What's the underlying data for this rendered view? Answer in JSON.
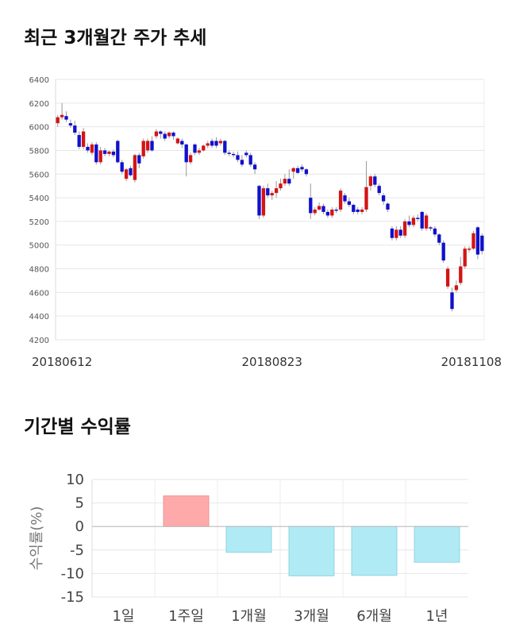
{
  "titles": {
    "stock": "최근 3개월간 주가 추세",
    "returns": "기간별 수익률"
  },
  "colors": {
    "up": "#d41414",
    "down": "#1010cc",
    "wick": "#999999",
    "positive_bar": "#ffaaaa",
    "negative_bar": "#b0ebf5"
  },
  "chart_data": [
    {
      "type": "candlestick",
      "title": "최근 3개월간 주가 추세",
      "ylim": [
        4200,
        6400
      ],
      "yticks": [
        4200,
        4400,
        4600,
        4800,
        5000,
        5200,
        5400,
        5600,
        5800,
        6000,
        6200,
        6400
      ],
      "xtick_labels": [
        "20180612",
        "20180823",
        "20181108"
      ],
      "xtick_index": [
        0,
        50,
        101
      ],
      "grid": true,
      "candles": [
        [
          6030,
          6080,
          6000,
          6100
        ],
        [
          6080,
          6100,
          6060,
          6200
        ],
        [
          6090,
          6060,
          6040,
          6130
        ],
        [
          6030,
          6010,
          5990,
          6060
        ],
        [
          6010,
          5950,
          5930,
          6050
        ],
        [
          5930,
          5830,
          5810,
          5960
        ],
        [
          5830,
          5960,
          5810,
          5990
        ],
        [
          5830,
          5800,
          5780,
          5860
        ],
        [
          5780,
          5850,
          5760,
          5870
        ],
        [
          5850,
          5700,
          5680,
          5870
        ],
        [
          5700,
          5800,
          5680,
          5830
        ],
        [
          5800,
          5770,
          5750,
          5820
        ],
        [
          5770,
          5790,
          5750,
          5800
        ],
        [
          5790,
          5760,
          5740,
          5810
        ],
        [
          5880,
          5700,
          5690,
          5890
        ],
        [
          5700,
          5620,
          5600,
          5720
        ],
        [
          5560,
          5640,
          5540,
          5650
        ],
        [
          5650,
          5590,
          5580,
          5670
        ],
        [
          5550,
          5760,
          5530,
          5770
        ],
        [
          5760,
          5690,
          5650,
          5780
        ],
        [
          5750,
          5880,
          5730,
          5900
        ],
        [
          5800,
          5880,
          5780,
          5900
        ],
        [
          5880,
          5800,
          5790,
          5920
        ],
        [
          5920,
          5960,
          5900,
          5980
        ],
        [
          5960,
          5940,
          5900,
          5970
        ],
        [
          5940,
          5900,
          5880,
          5960
        ],
        [
          5920,
          5950,
          5900,
          5960
        ],
        [
          5950,
          5920,
          5890,
          5960
        ],
        [
          5860,
          5900,
          5850,
          5910
        ],
        [
          5880,
          5850,
          5820,
          5900
        ],
        [
          5850,
          5700,
          5580,
          5860
        ],
        [
          5700,
          5760,
          5680,
          5780
        ],
        [
          5850,
          5780,
          5760,
          5860
        ],
        [
          5780,
          5800,
          5760,
          5820
        ],
        [
          5800,
          5840,
          5790,
          5850
        ],
        [
          5840,
          5860,
          5820,
          5880
        ],
        [
          5880,
          5840,
          5820,
          5900
        ],
        [
          5880,
          5840,
          5820,
          5910
        ],
        [
          5860,
          5880,
          5840,
          5900
        ],
        [
          5880,
          5780,
          5760,
          5890
        ],
        [
          5780,
          5770,
          5750,
          5800
        ],
        [
          5770,
          5760,
          5740,
          5790
        ],
        [
          5760,
          5720,
          5700,
          5790
        ],
        [
          5720,
          5680,
          5660,
          5760
        ],
        [
          5780,
          5760,
          5740,
          5800
        ],
        [
          5760,
          5680,
          5660,
          5780
        ],
        [
          5680,
          5640,
          5600,
          5700
        ],
        [
          5500,
          5250,
          5220,
          5510
        ],
        [
          5250,
          5480,
          5230,
          5500
        ],
        [
          5480,
          5420,
          5400,
          5520
        ],
        [
          5420,
          5440,
          5380,
          5460
        ],
        [
          5440,
          5480,
          5400,
          5540
        ],
        [
          5480,
          5520,
          5460,
          5560
        ],
        [
          5520,
          5560,
          5500,
          5600
        ],
        [
          5560,
          5520,
          5500,
          5640
        ],
        [
          5620,
          5650,
          5560,
          5660
        ],
        [
          5650,
          5610,
          5600,
          5670
        ],
        [
          5660,
          5640,
          5620,
          5680
        ],
        [
          5640,
          5600,
          5580,
          5650
        ],
        [
          5400,
          5270,
          5220,
          5520
        ],
        [
          5270,
          5300,
          5250,
          5320
        ],
        [
          5300,
          5330,
          5290,
          5360
        ],
        [
          5330,
          5280,
          5260,
          5350
        ],
        [
          5280,
          5250,
          5230,
          5300
        ],
        [
          5250,
          5300,
          5230,
          5320
        ],
        [
          5300,
          5290,
          5270,
          5320
        ],
        [
          5300,
          5460,
          5280,
          5480
        ],
        [
          5420,
          5370,
          5350,
          5440
        ],
        [
          5370,
          5340,
          5320,
          5400
        ],
        [
          5340,
          5280,
          5260,
          5350
        ],
        [
          5300,
          5280,
          5260,
          5320
        ],
        [
          5280,
          5300,
          5260,
          5320
        ],
        [
          5300,
          5490,
          5280,
          5710
        ],
        [
          5500,
          5580,
          5460,
          5590
        ],
        [
          5580,
          5510,
          5490,
          5600
        ],
        [
          5500,
          5440,
          5420,
          5520
        ],
        [
          5420,
          5370,
          5340,
          5440
        ],
        [
          5350,
          5300,
          5280,
          5360
        ],
        [
          5140,
          5060,
          5040,
          5160
        ],
        [
          5060,
          5130,
          5040,
          5160
        ],
        [
          5130,
          5080,
          5060,
          5160
        ],
        [
          5080,
          5200,
          5060,
          5220
        ],
        [
          5200,
          5170,
          5150,
          5250
        ],
        [
          5170,
          5230,
          5150,
          5250
        ],
        [
          5230,
          5220,
          5200,
          5260
        ],
        [
          5280,
          5140,
          5120,
          5290
        ],
        [
          5140,
          5250,
          5120,
          5270
        ],
        [
          5150,
          5140,
          5120,
          5160
        ],
        [
          5140,
          5090,
          5070,
          5160
        ],
        [
          5090,
          5020,
          5000,
          5100
        ],
        [
          5020,
          4870,
          4850,
          5040
        ],
        [
          4650,
          4800,
          4630,
          4820
        ],
        [
          4600,
          4460,
          4440,
          4640
        ],
        [
          4620,
          4660,
          4600,
          4700
        ],
        [
          4680,
          4820,
          4660,
          4900
        ],
        [
          4820,
          4970,
          4800,
          4990
        ],
        [
          4960,
          4970,
          4940,
          4990
        ],
        [
          4970,
          5100,
          4960,
          5120
        ],
        [
          5150,
          4920,
          4880,
          5160
        ],
        [
          5080,
          4950,
          4920,
          5100
        ]
      ]
    },
    {
      "type": "bar",
      "title": "기간별 수익률",
      "ylabel": "수익률(%)",
      "categories": [
        "1일",
        "1주일",
        "1개월",
        "3개월",
        "6개월",
        "1년"
      ],
      "values": [
        0,
        6.5,
        -5.5,
        -10.5,
        -10.4,
        -7.6
      ],
      "ylim": [
        -15,
        10
      ],
      "yticks": [
        10,
        5,
        0,
        -5,
        -10,
        -15
      ],
      "grid": true
    }
  ]
}
